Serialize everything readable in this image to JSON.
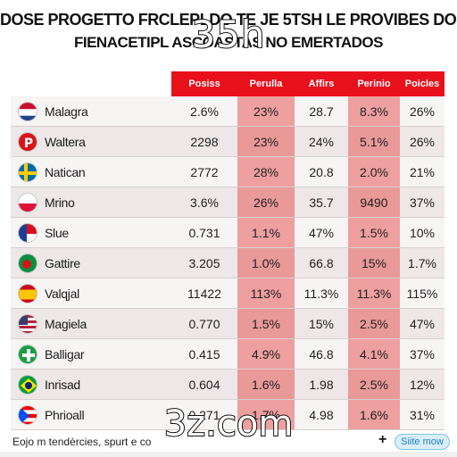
{
  "title": {
    "line1": "DOSE PROGETTO FRCLEPLDO TE JE 5TSH LE PROVIBES DOS",
    "line2": "FIENACETIPL ASCOASTAS NO EMERTADOS",
    "overlay": "35h"
  },
  "table": {
    "headers": [
      "Posiss",
      "Perulla",
      "Affirs",
      "Perinio",
      "Poicles"
    ],
    "rows": [
      {
        "name": "Malagra",
        "flag": "netherlands-flag",
        "values": [
          "2.6%",
          "23%",
          "28.7",
          "8.3%",
          "26%"
        ]
      },
      {
        "name": "Waltera",
        "flag": "pinterest-logo",
        "values": [
          "2298",
          "23%",
          "24%",
          "5.1%",
          "26%"
        ]
      },
      {
        "name": "Natican",
        "flag": "sweden-flag",
        "values": [
          "2772",
          "28%",
          "20.8",
          "2.0%",
          "21%"
        ]
      },
      {
        "name": "Mrino",
        "flag": "poland-flag",
        "values": [
          "3.6%",
          "26%",
          "35.7",
          "9490",
          "37%"
        ]
      },
      {
        "name": "Slue",
        "flag": "red-white-flag",
        "values": [
          "0.731",
          "1.1%",
          "47%",
          "1.5%",
          "10%"
        ]
      },
      {
        "name": "Gattire",
        "flag": "green-circle-flag",
        "values": [
          "3.205",
          "1.0%",
          "66.8",
          "15%",
          "1.7%"
        ]
      },
      {
        "name": "Valqjal",
        "flag": "spain-flag",
        "values": [
          "11422",
          "113%",
          "11.3%",
          "11.3%",
          "115%"
        ]
      },
      {
        "name": "Magiela",
        "flag": "usa-flag",
        "values": [
          "0.770",
          "1.5%",
          "15%",
          "2.5%",
          "47%"
        ]
      },
      {
        "name": "Balligar",
        "flag": "green-cross-flag",
        "values": [
          "0.415",
          "4.9%",
          "46.8",
          "4.1%",
          "37%"
        ]
      },
      {
        "name": "Inrisad",
        "flag": "brazil-flag",
        "values": [
          "0.604",
          "1.6%",
          "1.98",
          "2.5%",
          "12%"
        ]
      },
      {
        "name": "Phrioall",
        "flag": "puerto-rico-flag",
        "values": [
          "0.271",
          "1.7%",
          "4.98",
          "1.6%",
          "31%"
        ]
      }
    ]
  },
  "footer": {
    "text": "Eojo m tendèrcies, spurt e co",
    "plus": "+",
    "button": "Siite mow"
  },
  "watermark": "3z.com",
  "colors": {
    "header_red": "#e8101b",
    "highlight": "#e85a5a"
  }
}
